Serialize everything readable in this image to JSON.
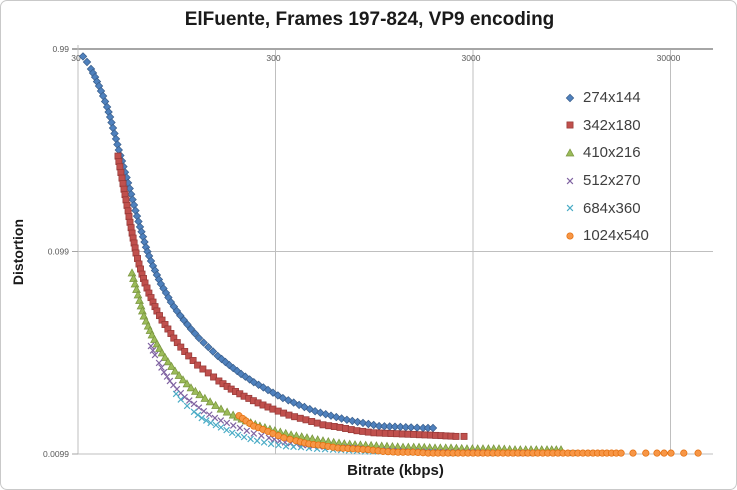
{
  "title": "ElFuente, Frames 197-824, VP9 encoding",
  "chart_data": {
    "type": "scatter",
    "title": "ElFuente, Frames 197-824, VP9 encoding",
    "xlabel": "Bitrate (kbps)",
    "ylabel": "Distortion",
    "x_scale": "log",
    "y_scale": "log",
    "xlim": [
      30,
      45000
    ],
    "ylim": [
      0.0099,
      0.99
    ],
    "x_ticks": [
      30,
      300,
      3000,
      30000
    ],
    "x_tick_labels": [
      "30",
      "300",
      "3000",
      "30000"
    ],
    "y_ticks": [
      0.99,
      0.099,
      0.0099
    ],
    "y_tick_labels": [
      "0.99",
      "0.099",
      "0.0099"
    ],
    "grid": true,
    "legend_position": "upper-right-inside",
    "series": [
      {
        "name": "274x144",
        "marker": "diamond",
        "color": "#4F81BD",
        "edge": "#385D8A",
        "points": [
          [
            31.8,
            0.91
          ],
          [
            33.3,
            0.854
          ],
          [
            34.9,
            0.789
          ],
          [
            36.6,
            0.719
          ],
          [
            38.3,
            0.65
          ],
          [
            40.2,
            0.58
          ],
          [
            42.1,
            0.512
          ],
          [
            43.6,
            0.457
          ],
          [
            45.1,
            0.403
          ],
          [
            46.7,
            0.356
          ],
          [
            48.3,
            0.314
          ],
          [
            50.1,
            0.277
          ],
          [
            51.9,
            0.244
          ],
          [
            53.8,
            0.216
          ],
          [
            55.8,
            0.19
          ],
          [
            57.6,
            0.168
          ],
          [
            59.7,
            0.148
          ],
          [
            61.8,
            0.131
          ],
          [
            64,
            0.117
          ],
          [
            66.3,
            0.104
          ],
          [
            68.7,
            0.0941
          ],
          [
            71.9,
            0.084
          ],
          [
            75.3,
            0.0758
          ],
          [
            78.9,
            0.0684
          ],
          [
            83.7,
            0.0618
          ],
          [
            88.6,
            0.0557
          ],
          [
            95,
            0.0503
          ],
          [
            103,
            0.0454
          ],
          [
            112,
            0.041
          ],
          [
            123,
            0.037
          ],
          [
            137,
            0.0334
          ],
          [
            153,
            0.0302
          ],
          [
            175,
            0.0272
          ],
          [
            201,
            0.0246
          ],
          [
            233,
            0.0224
          ],
          [
            275,
            0.0205
          ],
          [
            327,
            0.0187
          ],
          [
            395,
            0.0173
          ],
          [
            476,
            0.0161
          ],
          [
            573,
            0.0153
          ],
          [
            690,
            0.0146
          ],
          [
            832,
            0.0141
          ],
          [
            1004,
            0.0136
          ],
          [
            1209,
            0.0135
          ],
          [
            1458,
            0.0134
          ],
          [
            1676,
            0.0133
          ],
          [
            1881,
            0.0133
          ]
        ]
      },
      {
        "name": "342x180",
        "marker": "square",
        "color": "#C0504D",
        "edge": "#953735",
        "points": [
          [
            47.8,
            0.293
          ],
          [
            48.9,
            0.259
          ],
          [
            50.1,
            0.228
          ],
          [
            51.3,
            0.201
          ],
          [
            52.5,
            0.178
          ],
          [
            53.8,
            0.157
          ],
          [
            55,
            0.138
          ],
          [
            56.4,
            0.122
          ],
          [
            57.7,
            0.109
          ],
          [
            59,
            0.0973
          ],
          [
            61.1,
            0.0859
          ],
          [
            63.3,
            0.0766
          ],
          [
            65.5,
            0.0692
          ],
          [
            68.6,
            0.0617
          ],
          [
            71.9,
            0.0557
          ],
          [
            75.3,
            0.0503
          ],
          [
            79.9,
            0.0454
          ],
          [
            85.6,
            0.041
          ],
          [
            91.7,
            0.037
          ],
          [
            99.5,
            0.0334
          ],
          [
            109,
            0.0302
          ],
          [
            121,
            0.0272
          ],
          [
            137,
            0.0249
          ],
          [
            155,
            0.0227
          ],
          [
            179,
            0.0207
          ],
          [
            208,
            0.0191
          ],
          [
            245,
            0.0177
          ],
          [
            291,
            0.0165
          ],
          [
            351,
            0.0154
          ],
          [
            428,
            0.0146
          ],
          [
            522,
            0.0138
          ],
          [
            636,
            0.0134
          ],
          [
            776,
            0.0129
          ],
          [
            946,
            0.0126
          ],
          [
            1153,
            0.0125
          ],
          [
            1406,
            0.0124
          ],
          [
            1715,
            0.0123
          ],
          [
            2066,
            0.0122
          ],
          [
            2460,
            0.0121
          ],
          [
            2701,
            0.0121
          ]
        ]
      },
      {
        "name": "410x216",
        "marker": "triangle",
        "color": "#9BBB59",
        "edge": "#77933C",
        "points": [
          [
            56.3,
            0.0775
          ],
          [
            58.3,
            0.0684
          ],
          [
            60.4,
            0.0604
          ],
          [
            62.5,
            0.0533
          ],
          [
            64.7,
            0.0475
          ],
          [
            67.9,
            0.0424
          ],
          [
            71.1,
            0.0383
          ],
          [
            75.4,
            0.0346
          ],
          [
            79.9,
            0.0312
          ],
          [
            85.7,
            0.0282
          ],
          [
            92.9,
            0.0254
          ],
          [
            102,
            0.023
          ],
          [
            112,
            0.021
          ],
          [
            124,
            0.0194
          ],
          [
            140,
            0.0179
          ],
          [
            159,
            0.0165
          ],
          [
            183,
            0.0154
          ],
          [
            213,
            0.0144
          ],
          [
            250,
            0.0136
          ],
          [
            298,
            0.0129
          ],
          [
            360,
            0.0123
          ],
          [
            433,
            0.0119
          ],
          [
            522,
            0.0115
          ],
          [
            629,
            0.0112
          ],
          [
            758,
            0.011
          ],
          [
            914,
            0.0109
          ],
          [
            1101,
            0.0108
          ],
          [
            1327,
            0.0107
          ],
          [
            1598,
            0.0107
          ],
          [
            1926,
            0.0106
          ],
          [
            2322,
            0.0106
          ],
          [
            2798,
            0.0105
          ],
          [
            3372,
            0.0105
          ],
          [
            4063,
            0.0105
          ],
          [
            4896,
            0.0104
          ],
          [
            5900,
            0.0104
          ],
          [
            7108,
            0.0104
          ],
          [
            8370,
            0.0104
          ]
        ]
      },
      {
        "name": "512x270",
        "marker": "xmark",
        "color": "#8064A2",
        "edge": "#8064A2",
        "points": [
          [
            70.2,
            0.0338
          ],
          [
            73.6,
            0.0305
          ],
          [
            77.1,
            0.0279
          ],
          [
            81.8,
            0.0251
          ],
          [
            87.6,
            0.0227
          ],
          [
            95,
            0.0207
          ],
          [
            104,
            0.0189
          ],
          [
            116,
            0.0175
          ],
          [
            130,
            0.0161
          ],
          [
            148,
            0.0149
          ],
          [
            170,
            0.0141
          ],
          [
            198,
            0.0133
          ],
          [
            233,
            0.0125
          ],
          [
            278,
            0.0119
          ],
          [
            335,
            0.0113
          ],
          [
            409,
            0.011
          ],
          [
            498,
            0.0108
          ],
          [
            607,
            0.0107
          ],
          [
            740,
            0.0106
          ],
          [
            903,
            0.0104
          ],
          [
            1101,
            0.0103
          ],
          [
            1342,
            0.0102
          ],
          [
            1636,
            0.0102
          ],
          [
            1995,
            0.0101
          ],
          [
            2432,
            0.0101
          ],
          [
            2965,
            0.0101
          ],
          [
            3615,
            0.01
          ],
          [
            4408,
            0.01
          ],
          [
            5374,
            0.01
          ],
          [
            6552,
            0.01
          ],
          [
            7989,
            0.01
          ]
        ]
      },
      {
        "name": "684x360",
        "marker": "xmark",
        "color": "#4BACC6",
        "edge": "#4BACC6",
        "points": [
          [
            94.1,
            0.0196
          ],
          [
            99.5,
            0.0184
          ],
          [
            107,
            0.0171
          ],
          [
            116,
            0.016
          ],
          [
            127,
            0.0149
          ],
          [
            141,
            0.0141
          ],
          [
            159,
            0.0134
          ],
          [
            181,
            0.0126
          ],
          [
            208,
            0.012
          ],
          [
            242,
            0.0115
          ],
          [
            285,
            0.0111
          ],
          [
            339,
            0.0108
          ],
          [
            404,
            0.0107
          ],
          [
            487,
            0.0105
          ],
          [
            587,
            0.0104
          ],
          [
            707,
            0.0103
          ],
          [
            852,
            0.0102
          ],
          [
            1026,
            0.0102
          ],
          [
            1237,
            0.0101
          ],
          [
            1490,
            0.0101
          ],
          [
            1796,
            0.0101
          ],
          [
            2164,
            0.01
          ],
          [
            2607,
            0.01
          ],
          [
            3144,
            0.01
          ],
          [
            3789,
            0.01
          ],
          [
            4566,
            0.01
          ],
          [
            5503,
            0.01
          ],
          [
            6632,
            0.01
          ],
          [
            7992,
            0.01
          ],
          [
            9630,
            0.01
          ],
          [
            11600,
            0.01
          ],
          [
            13340,
            0.01
          ]
        ]
      },
      {
        "name": "1024x540",
        "marker": "circle",
        "color": "#F79646",
        "edge": "#E36C09",
        "sparse_from": 16000,
        "points": [
          [
            196,
            0.0153
          ],
          [
            213,
            0.0144
          ],
          [
            233,
            0.0136
          ],
          [
            259,
            0.0131
          ],
          [
            291,
            0.0125
          ],
          [
            331,
            0.0119
          ],
          [
            381,
            0.0115
          ],
          [
            443,
            0.0111
          ],
          [
            522,
            0.0109
          ],
          [
            622,
            0.0106
          ],
          [
            740,
            0.0105
          ],
          [
            883,
            0.0104
          ],
          [
            1052,
            0.0102
          ],
          [
            1252,
            0.0101
          ],
          [
            1490,
            0.0101
          ],
          [
            1777,
            0.01
          ],
          [
            2115,
            0.01
          ],
          [
            2519,
            0.01
          ],
          [
            3000,
            0.01
          ],
          [
            3567,
            0.01
          ],
          [
            4256,
            0.01
          ],
          [
            5065,
            0.01
          ],
          [
            6028,
            0.01
          ],
          [
            7176,
            0.01
          ],
          [
            8564,
            0.01
          ],
          [
            10190,
            0.01
          ],
          [
            12160,
            0.01
          ],
          [
            14290,
            0.01
          ],
          [
            16860,
            0.01
          ],
          [
            19370,
            0.01
          ],
          [
            22500,
            0.01
          ],
          [
            25640,
            0.01
          ],
          [
            27830,
            0.01
          ],
          [
            30180,
            0.01
          ],
          [
            35050,
            0.01
          ],
          [
            41390,
            0.01
          ]
        ]
      }
    ],
    "colors": {
      "gridline": "#BFBFBF",
      "axis_line": "#A6A6A6",
      "tick_text": "#595959",
      "title_text": "#1A1A1A",
      "legend_text": "#3F3F3F"
    }
  }
}
